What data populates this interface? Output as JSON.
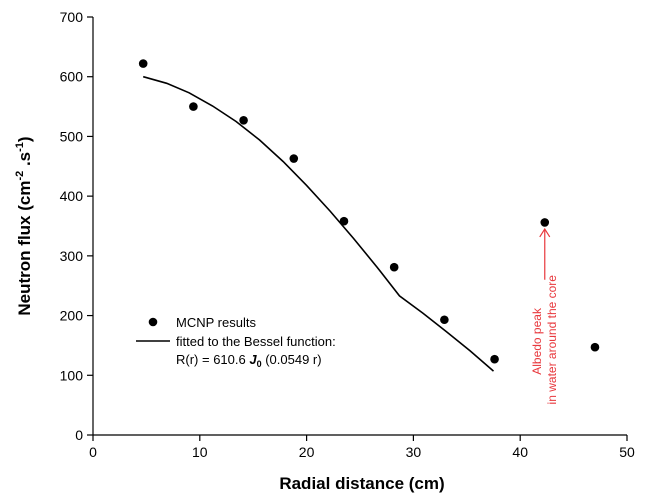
{
  "chart_data": {
    "type": "scatter",
    "xlabel": "Radial distance (cm)",
    "ylabel": {
      "main": "Neutron flux (cm",
      "sup1": "-2",
      "mid": " .s",
      "sup2": "-1",
      "end": ")"
    },
    "xlim": [
      0,
      50
    ],
    "ylim": [
      0,
      700
    ],
    "x_ticks": [
      "0",
      "10",
      "20",
      "30",
      "40",
      "50"
    ],
    "y_ticks": [
      "0",
      "100",
      "200",
      "300",
      "400",
      "500",
      "600",
      "700"
    ],
    "grid": false,
    "legend_position": "lower-left",
    "series": [
      {
        "name": "MCNP results",
        "kind": "scatter",
        "x": [
          4.7,
          9.4,
          14.1,
          18.8,
          23.5,
          28.2,
          32.9,
          37.6,
          42.3,
          47.0
        ],
        "y": [
          622,
          550,
          527,
          463,
          358,
          281,
          193,
          127,
          356,
          147
        ]
      },
      {
        "name": "fitted to the Bessel function:",
        "kind": "line",
        "equation": {
          "lhs": "R(r) = 610.6 ",
          "fn": "J",
          "sub": "0",
          "rhs": " (0.0549 r)"
        },
        "x": [
          4.7,
          6.9,
          9.0,
          11.2,
          13.4,
          15.6,
          17.8,
          20.0,
          22.2,
          24.4,
          26.6,
          28.7,
          30.9,
          33.1,
          35.3,
          37.5
        ],
        "y": [
          600,
          589,
          573,
          551,
          525,
          494,
          458,
          418,
          375,
          329,
          281,
          233,
          204,
          173,
          141,
          107
        ]
      }
    ],
    "annotations": [
      {
        "line1": "Albedo peak",
        "line2": "in water around the core",
        "color": "#e8383d",
        "x": 42.3,
        "arrow_y_from": 260,
        "arrow_y_to": 345
      }
    ]
  }
}
